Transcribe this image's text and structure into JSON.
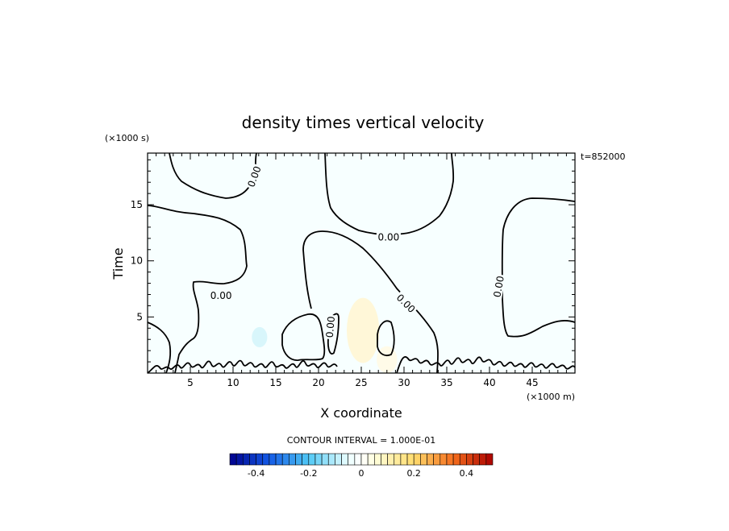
{
  "chart_data": {
    "type": "heatmap",
    "title": "density times vertical velocity",
    "xlabel": "X coordinate",
    "ylabel": "Time",
    "x_unit_label": "(×1000 m)",
    "y_unit_label": "(×1000 s)",
    "time_stamp": "t=852000",
    "xlim": [
      0,
      50
    ],
    "ylim": [
      0,
      19.6
    ],
    "x_ticks": [
      5,
      10,
      15,
      20,
      25,
      30,
      35,
      40,
      45
    ],
    "y_ticks": [
      5,
      10,
      15
    ],
    "contour_labels": [
      {
        "text": "0.00",
        "x": 12.5,
        "y": 17.5,
        "rotate": -70
      },
      {
        "text": "0.00",
        "x": 8.6,
        "y": 6.9,
        "rotate": 0
      },
      {
        "text": "0.00",
        "x": 28.2,
        "y": 12.1,
        "rotate": 0
      },
      {
        "text": "0.00",
        "x": 21.4,
        "y": 4.1,
        "rotate": -85
      },
      {
        "text": "0.00",
        "x": 30.2,
        "y": 6.2,
        "rotate": 45
      },
      {
        "text": "0.00",
        "x": 41.1,
        "y": 7.7,
        "rotate": -80
      }
    ],
    "contour_interval_label": "CONTOUR INTERVAL = 1.000E-01",
    "colorbar": {
      "range": [
        -0.5,
        0.5
      ],
      "step": 0.025,
      "tick_labels": [
        "-0.4",
        "-0.2",
        "0",
        "0.2",
        "0.4"
      ],
      "tick_values": [
        -0.4,
        -0.2,
        0,
        0.2,
        0.4
      ]
    },
    "field": {
      "background": "#f7ffff",
      "blobs": [
        {
          "x": 13.1,
          "y": 3.2,
          "rx": 0.9,
          "ry": 0.9,
          "color": "#d8f6fb"
        },
        {
          "x": 25.2,
          "y": 3.8,
          "rx": 1.9,
          "ry": 2.9,
          "color": "#fff7d8"
        },
        {
          "x": 28.0,
          "y": 1.2,
          "rx": 1.2,
          "ry": 1.2,
          "color": "#fffbe8"
        }
      ]
    }
  }
}
